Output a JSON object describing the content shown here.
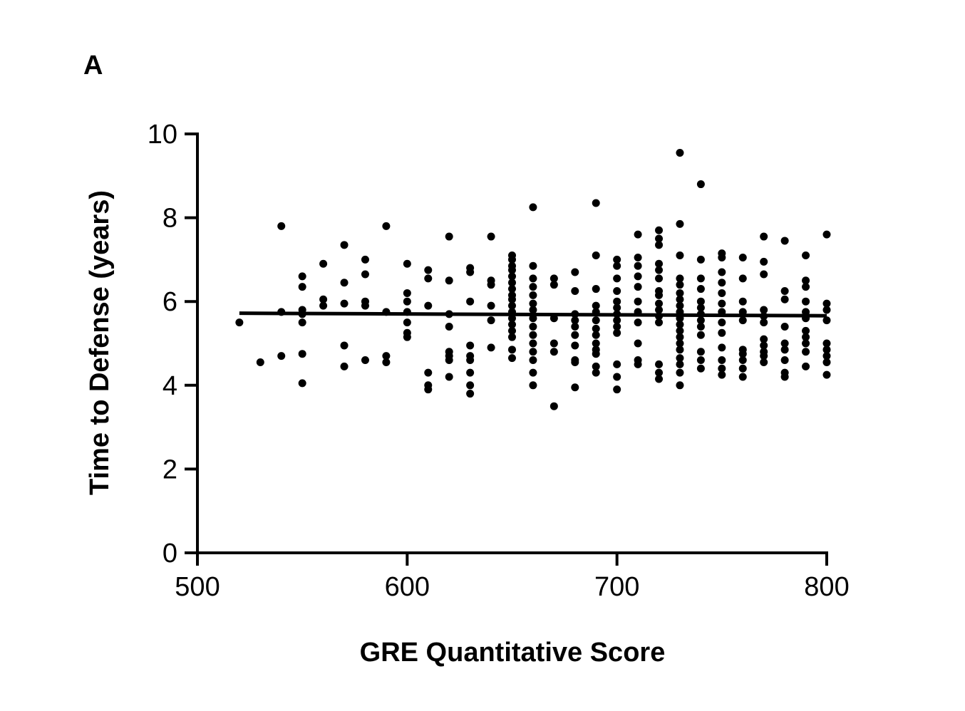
{
  "panel_label": "A",
  "chart_data": {
    "type": "scatter",
    "xlabel": "GRE Quantitative Score",
    "ylabel": "Time to Defense (years)",
    "xlim": [
      500,
      800
    ],
    "ylim": [
      0,
      10
    ],
    "x_ticks": [
      500,
      600,
      700,
      800
    ],
    "y_ticks": [
      0,
      2,
      4,
      6,
      8,
      10
    ],
    "x_tick_labels": [
      "500",
      "600",
      "700",
      "800"
    ],
    "y_tick_labels": [
      "0",
      "2",
      "4",
      "6",
      "8",
      "10"
    ],
    "grid": false,
    "legend": "none",
    "marker_color": "#000000",
    "trend_line": {
      "x": [
        520,
        800
      ],
      "y": [
        5.72,
        5.66
      ]
    },
    "points": [
      [
        520,
        5.5
      ],
      [
        530,
        4.55
      ],
      [
        540,
        7.8
      ],
      [
        540,
        5.75
      ],
      [
        540,
        4.7
      ],
      [
        550,
        6.6
      ],
      [
        550,
        6.35
      ],
      [
        550,
        5.8
      ],
      [
        550,
        5.7
      ],
      [
        550,
        5.5
      ],
      [
        550,
        4.75
      ],
      [
        550,
        4.05
      ],
      [
        560,
        6.9
      ],
      [
        560,
        6.05
      ],
      [
        560,
        5.9
      ],
      [
        570,
        7.35
      ],
      [
        570,
        6.45
      ],
      [
        570,
        5.95
      ],
      [
        570,
        4.95
      ],
      [
        570,
        4.45
      ],
      [
        580,
        7.0
      ],
      [
        580,
        6.65
      ],
      [
        580,
        6.0
      ],
      [
        580,
        5.9
      ],
      [
        580,
        4.6
      ],
      [
        590,
        7.8
      ],
      [
        590,
        5.75
      ],
      [
        590,
        4.7
      ],
      [
        590,
        4.55
      ],
      [
        600,
        6.9
      ],
      [
        600,
        6.2
      ],
      [
        600,
        6.0
      ],
      [
        600,
        5.75
      ],
      [
        600,
        5.5
      ],
      [
        600,
        5.25
      ],
      [
        600,
        5.15
      ],
      [
        610,
        6.75
      ],
      [
        610,
        6.55
      ],
      [
        610,
        5.9
      ],
      [
        610,
        4.3
      ],
      [
        610,
        4.0
      ],
      [
        610,
        3.9
      ],
      [
        620,
        7.55
      ],
      [
        620,
        6.5
      ],
      [
        620,
        5.7
      ],
      [
        620,
        5.4
      ],
      [
        620,
        4.8
      ],
      [
        620,
        4.7
      ],
      [
        620,
        4.6
      ],
      [
        620,
        4.2
      ],
      [
        630,
        6.8
      ],
      [
        630,
        6.7
      ],
      [
        630,
        6.0
      ],
      [
        630,
        4.95
      ],
      [
        630,
        4.7
      ],
      [
        630,
        4.6
      ],
      [
        630,
        4.3
      ],
      [
        630,
        4.0
      ],
      [
        630,
        3.8
      ],
      [
        640,
        7.55
      ],
      [
        640,
        6.5
      ],
      [
        640,
        6.4
      ],
      [
        640,
        5.9
      ],
      [
        640,
        5.55
      ],
      [
        640,
        4.9
      ],
      [
        650,
        7.1
      ],
      [
        650,
        7.0
      ],
      [
        650,
        6.85
      ],
      [
        650,
        6.75
      ],
      [
        650,
        6.6
      ],
      [
        650,
        6.45
      ],
      [
        650,
        6.3
      ],
      [
        650,
        6.15
      ],
      [
        650,
        6.05
      ],
      [
        650,
        5.9
      ],
      [
        650,
        5.75
      ],
      [
        650,
        5.6
      ],
      [
        650,
        5.45
      ],
      [
        650,
        5.3
      ],
      [
        650,
        5.15
      ],
      [
        650,
        4.85
      ],
      [
        650,
        4.65
      ],
      [
        660,
        8.25
      ],
      [
        660,
        6.85
      ],
      [
        660,
        6.55
      ],
      [
        660,
        6.35
      ],
      [
        660,
        6.15
      ],
      [
        660,
        5.95
      ],
      [
        660,
        5.8
      ],
      [
        660,
        5.6
      ],
      [
        660,
        5.4
      ],
      [
        660,
        5.2
      ],
      [
        660,
        5.0
      ],
      [
        660,
        4.8
      ],
      [
        660,
        4.6
      ],
      [
        660,
        4.3
      ],
      [
        660,
        4.0
      ],
      [
        670,
        6.55
      ],
      [
        670,
        6.4
      ],
      [
        670,
        5.6
      ],
      [
        670,
        5.0
      ],
      [
        670,
        4.8
      ],
      [
        670,
        3.5
      ],
      [
        680,
        6.7
      ],
      [
        680,
        6.25
      ],
      [
        680,
        5.7
      ],
      [
        680,
        5.55
      ],
      [
        680,
        5.4
      ],
      [
        680,
        5.2
      ],
      [
        680,
        4.95
      ],
      [
        680,
        4.6
      ],
      [
        680,
        4.55
      ],
      [
        680,
        3.95
      ],
      [
        690,
        8.35
      ],
      [
        690,
        7.1
      ],
      [
        690,
        6.3
      ],
      [
        690,
        5.9
      ],
      [
        690,
        5.75
      ],
      [
        690,
        5.55
      ],
      [
        690,
        5.35
      ],
      [
        690,
        5.2
      ],
      [
        690,
        5.0
      ],
      [
        690,
        4.85
      ],
      [
        690,
        4.75
      ],
      [
        690,
        4.45
      ],
      [
        690,
        4.3
      ],
      [
        700,
        7.0
      ],
      [
        700,
        6.85
      ],
      [
        700,
        6.55
      ],
      [
        700,
        6.25
      ],
      [
        700,
        6.0
      ],
      [
        700,
        5.85
      ],
      [
        700,
        5.7
      ],
      [
        700,
        5.55
      ],
      [
        700,
        5.4
      ],
      [
        700,
        5.25
      ],
      [
        700,
        4.5
      ],
      [
        700,
        4.2
      ],
      [
        700,
        3.9
      ],
      [
        710,
        7.6
      ],
      [
        710,
        7.05
      ],
      [
        710,
        6.85
      ],
      [
        710,
        6.6
      ],
      [
        710,
        6.35
      ],
      [
        710,
        6.0
      ],
      [
        710,
        5.75
      ],
      [
        710,
        5.5
      ],
      [
        710,
        5.0
      ],
      [
        710,
        4.6
      ],
      [
        710,
        4.5
      ],
      [
        720,
        7.7
      ],
      [
        720,
        7.5
      ],
      [
        720,
        7.35
      ],
      [
        720,
        6.9
      ],
      [
        720,
        6.75
      ],
      [
        720,
        6.55
      ],
      [
        720,
        6.25
      ],
      [
        720,
        6.15
      ],
      [
        720,
        5.95
      ],
      [
        720,
        5.8
      ],
      [
        720,
        5.65
      ],
      [
        720,
        5.5
      ],
      [
        720,
        4.5
      ],
      [
        720,
        4.3
      ],
      [
        720,
        4.15
      ],
      [
        730,
        9.55
      ],
      [
        730,
        7.85
      ],
      [
        730,
        7.1
      ],
      [
        730,
        6.55
      ],
      [
        730,
        6.4
      ],
      [
        730,
        6.2
      ],
      [
        730,
        6.05
      ],
      [
        730,
        5.9
      ],
      [
        730,
        5.75
      ],
      [
        730,
        5.6
      ],
      [
        730,
        5.45
      ],
      [
        730,
        5.3
      ],
      [
        730,
        5.15
      ],
      [
        730,
        5.0
      ],
      [
        730,
        4.85
      ],
      [
        730,
        4.65
      ],
      [
        730,
        4.5
      ],
      [
        730,
        4.3
      ],
      [
        730,
        4.0
      ],
      [
        740,
        8.8
      ],
      [
        740,
        7.0
      ],
      [
        740,
        6.55
      ],
      [
        740,
        6.3
      ],
      [
        740,
        6.0
      ],
      [
        740,
        5.85
      ],
      [
        740,
        5.7
      ],
      [
        740,
        5.55
      ],
      [
        740,
        5.4
      ],
      [
        740,
        5.2
      ],
      [
        740,
        4.8
      ],
      [
        740,
        4.6
      ],
      [
        740,
        4.4
      ],
      [
        750,
        7.15
      ],
      [
        750,
        7.05
      ],
      [
        750,
        6.7
      ],
      [
        750,
        6.45
      ],
      [
        750,
        6.2
      ],
      [
        750,
        5.95
      ],
      [
        750,
        5.75
      ],
      [
        750,
        5.5
      ],
      [
        750,
        5.25
      ],
      [
        750,
        4.9
      ],
      [
        750,
        4.6
      ],
      [
        750,
        4.4
      ],
      [
        750,
        4.25
      ],
      [
        760,
        7.05
      ],
      [
        760,
        6.55
      ],
      [
        760,
        6.0
      ],
      [
        760,
        5.75
      ],
      [
        760,
        5.55
      ],
      [
        760,
        4.85
      ],
      [
        760,
        4.75
      ],
      [
        760,
        4.6
      ],
      [
        760,
        4.4
      ],
      [
        760,
        4.2
      ],
      [
        770,
        7.55
      ],
      [
        770,
        6.95
      ],
      [
        770,
        6.65
      ],
      [
        770,
        5.8
      ],
      [
        770,
        5.65
      ],
      [
        770,
        5.5
      ],
      [
        770,
        5.1
      ],
      [
        770,
        4.95
      ],
      [
        770,
        4.8
      ],
      [
        770,
        4.7
      ],
      [
        770,
        4.55
      ],
      [
        780,
        7.45
      ],
      [
        780,
        6.25
      ],
      [
        780,
        6.05
      ],
      [
        780,
        5.4
      ],
      [
        780,
        5.0
      ],
      [
        780,
        4.85
      ],
      [
        780,
        4.6
      ],
      [
        780,
        4.3
      ],
      [
        780,
        4.2
      ],
      [
        790,
        7.1
      ],
      [
        790,
        6.5
      ],
      [
        790,
        6.35
      ],
      [
        790,
        6.0
      ],
      [
        790,
        5.75
      ],
      [
        790,
        5.6
      ],
      [
        790,
        5.3
      ],
      [
        790,
        5.15
      ],
      [
        790,
        5.0
      ],
      [
        790,
        4.8
      ],
      [
        790,
        4.45
      ],
      [
        800,
        7.6
      ],
      [
        800,
        5.95
      ],
      [
        800,
        5.8
      ],
      [
        800,
        5.55
      ],
      [
        800,
        5.0
      ],
      [
        800,
        4.85
      ],
      [
        800,
        4.7
      ],
      [
        800,
        4.55
      ],
      [
        800,
        4.25
      ]
    ]
  }
}
